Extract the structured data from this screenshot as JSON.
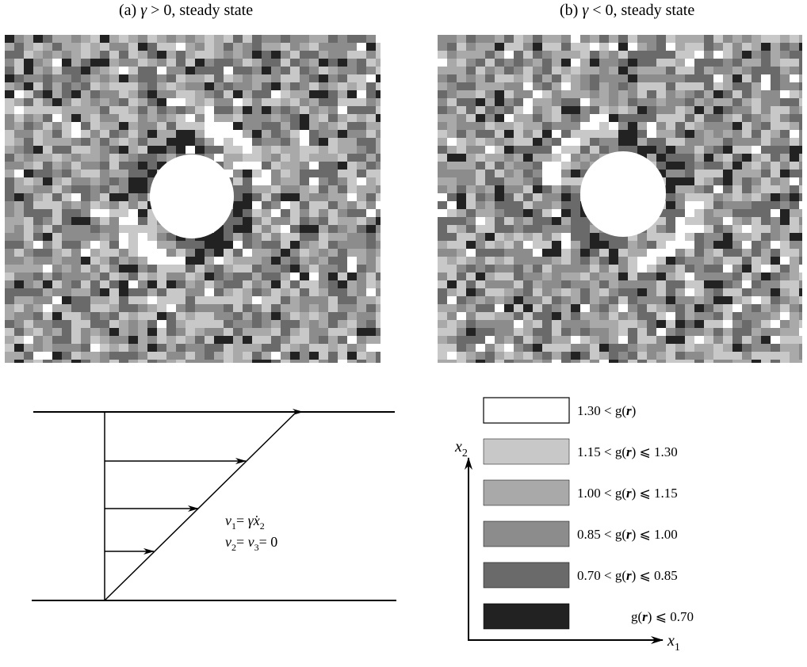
{
  "panels": [
    {
      "letter": "(a)",
      "gamma": "γ",
      "rel": " > 0, steady state",
      "sign": 1
    },
    {
      "letter": "(b)",
      "gamma": "γ",
      "rel": " < 0, steady state",
      "sign": -1
    }
  ],
  "shear_diagram": {
    "eq1": {
      "v": "v",
      "sub": "1",
      "rhs": "= ",
      "gdot": "γ̇",
      "x": "x",
      "xsub": "2"
    },
    "eq2": {
      "v": "v",
      "sub": "2",
      "mid": "= ",
      "v3": "v",
      "sub3": "3",
      "rhs": "= 0"
    }
  },
  "axes": {
    "x_label": "x",
    "x_sub": "1",
    "y_label": "x",
    "y_sub": "2"
  },
  "legend": [
    {
      "range": "1.30 < g(r)",
      "pre": "1.30 < g(",
      "r": "r",
      "post": ")",
      "level": 0
    },
    {
      "range": "1.15 < g(r) ⩽ 1.30",
      "pre": "1.15 < g(",
      "r": "r",
      "post": ") ⩽ 1.30",
      "level": 1
    },
    {
      "range": "1.00 < g(r) ⩽ 1.15",
      "pre": "1.00 < g(",
      "r": "r",
      "post": ") ⩽ 1.15",
      "level": 2
    },
    {
      "range": "0.85 < g(r) ⩽ 1.00",
      "pre": "0.85 < g(",
      "r": "r",
      "post": ") ⩽ 1.00",
      "level": 3
    },
    {
      "range": "0.70 < g(r) ⩽ 0.85",
      "pre": "0.70 < g(",
      "r": "r",
      "post": ") ⩽ 0.85",
      "level": 4
    },
    {
      "range": "g(r) ⩽ 0.70",
      "pre": "g(",
      "r": "r",
      "post": ") ⩽ 0.70",
      "level": 5
    }
  ],
  "colors": {
    "ink": "#000000",
    "paper": "#ffffff"
  }
}
